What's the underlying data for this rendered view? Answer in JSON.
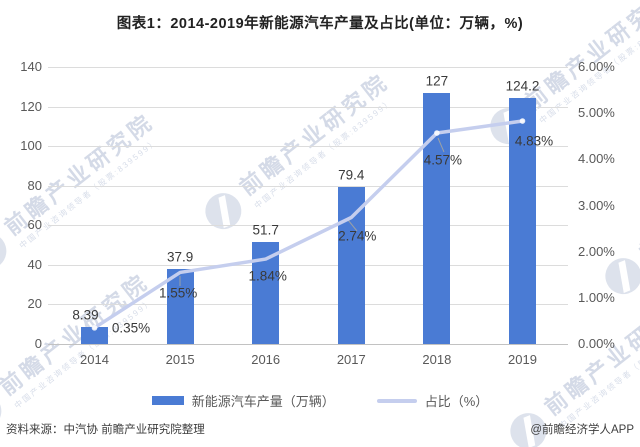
{
  "chart_data": {
    "type": "bar+line",
    "title": "图表1：2014-2019年新能源汽车产量及占比(单位：万辆，%)",
    "categories": [
      "2014",
      "2015",
      "2016",
      "2017",
      "2018",
      "2019"
    ],
    "series": [
      {
        "name": "新能源汽车产量（万辆）",
        "type": "bar",
        "axis": "left",
        "values": [
          8.39,
          37.9,
          51.7,
          79.4,
          127,
          124.2
        ],
        "labels": [
          "8.39",
          "37.9",
          "51.7",
          "79.4",
          "127",
          "124.2"
        ],
        "color": "#4a7bd4"
      },
      {
        "name": "占比（%）",
        "type": "line",
        "axis": "right",
        "values": [
          0.35,
          1.55,
          1.84,
          2.74,
          4.57,
          4.83
        ],
        "labels": [
          "0.35%",
          "1.55%",
          "1.84%",
          "2.74%",
          "4.57%",
          "4.83%"
        ],
        "color": "#c5ceee"
      }
    ],
    "left_axis": {
      "min": 0,
      "max": 140,
      "ticks": [
        "140",
        "120",
        "100",
        "80",
        "60",
        "40",
        "20",
        "0"
      ]
    },
    "right_axis": {
      "min": 0,
      "max": 6,
      "ticks": [
        "6.00%",
        "5.00%",
        "4.00%",
        "3.00%",
        "2.00%",
        "1.00%",
        "0.00%"
      ]
    },
    "grid": true,
    "legend_position": "bottom"
  },
  "footer": {
    "source": "资料来源：中汽协 前瞻产业研究院整理",
    "credit": "@前瞻经济学人APP"
  },
  "watermark": {
    "text": "前瞻产业研究院",
    "subtext": "中国产业咨询领导者（股票:839599）"
  },
  "colors": {
    "bar": "#4a7bd4",
    "line": "#c5ceee",
    "grid": "#dcdcdc",
    "axis_text": "#595959",
    "data_label_text": "#3a3a3a",
    "watermark": "#a0aeca"
  }
}
